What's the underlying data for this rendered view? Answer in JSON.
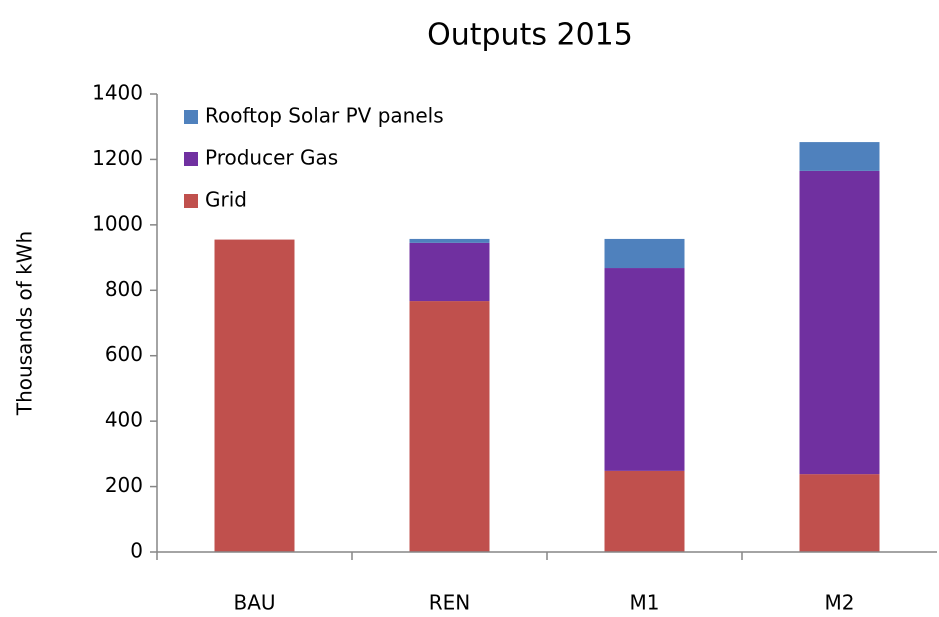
{
  "chart_data": {
    "type": "stacked_bar",
    "title": "Outputs 2015",
    "y_label": "Thousands of kWh",
    "categories": [
      "BAU",
      "REN",
      "M1",
      "M2"
    ],
    "series": [
      {
        "name": "Grid",
        "color": "#c0504d",
        "values": [
          955,
          767,
          248,
          238
        ]
      },
      {
        "name": "Producer Gas",
        "color": "#7030a0",
        "values": [
          0,
          178,
          620,
          927
        ]
      },
      {
        "name": "Rooftop Solar PV panels",
        "color": "#4f81bd",
        "values": [
          0,
          12,
          89,
          88
        ]
      }
    ],
    "ylim": [
      0,
      1400
    ],
    "yticks": [
      0,
      200,
      400,
      600,
      800,
      1000,
      1200,
      1400
    ],
    "grid": false,
    "legend": "upper left"
  }
}
